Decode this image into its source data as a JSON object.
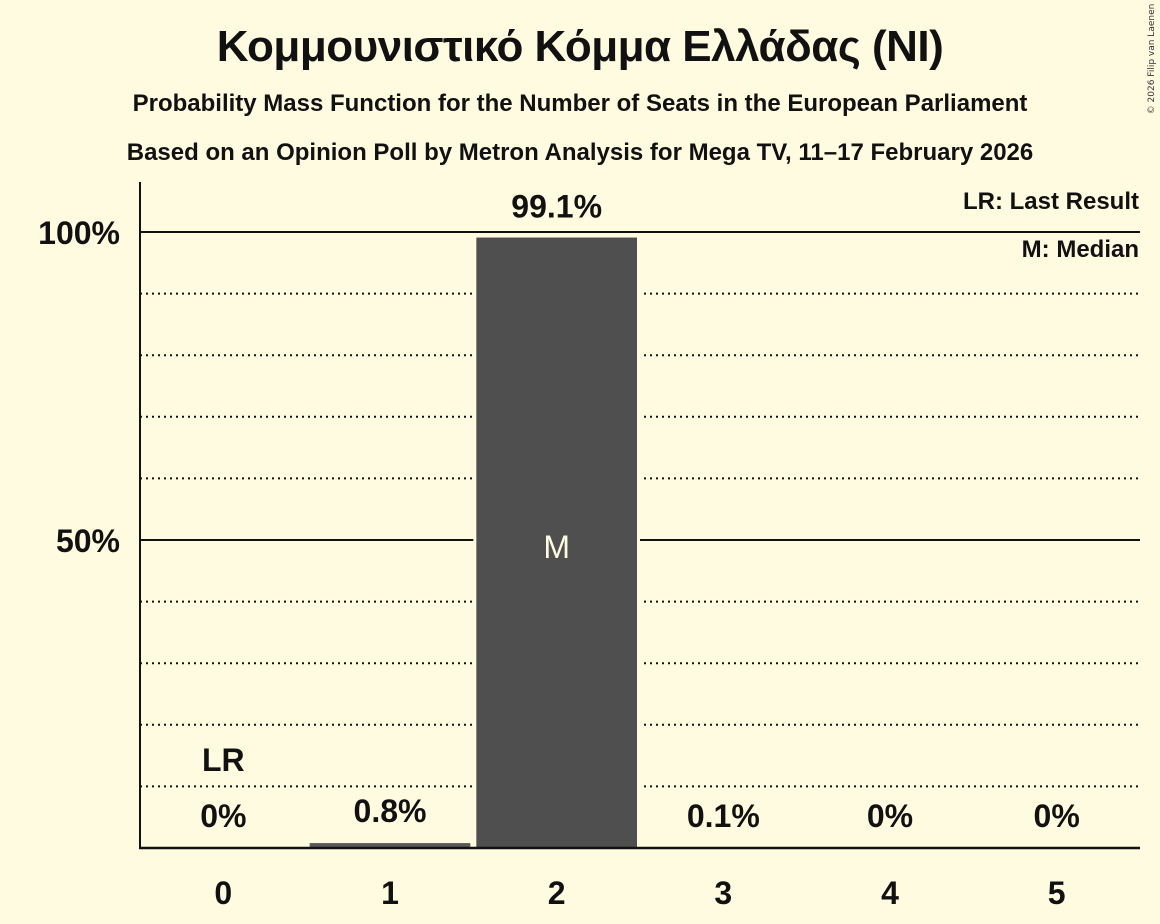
{
  "header": {
    "title": "Κομμουνιστικό Κόμμα Ελλάδας (NI)",
    "subtitle": "Probability Mass Function for the Number of Seats in the European Parliament",
    "source": "Based on an Opinion Poll by Metron Analysis for Mega TV, 11–17 February 2026",
    "copyright": "© 2026 Filip van Laenen"
  },
  "legend": {
    "last_result": "LR: Last Result",
    "median": "M: Median"
  },
  "colors": {
    "background": "#fffbe0",
    "bar": "#4f4f4f",
    "bar_small": "#5a5a5a",
    "text": "#111111",
    "median_text": "#fffbe0"
  },
  "chart_data": {
    "type": "bar",
    "title": "Κομμουνιστικό Κόμμα Ελλάδας (NI)",
    "subtitle": "Probability Mass Function for the Number of Seats in the European Parliament",
    "caption": "Based on an Opinion Poll by Metron Analysis for Mega TV, 11–17 February 2026",
    "xlabel": "",
    "ylabel": "",
    "categories": [
      "0",
      "1",
      "2",
      "3",
      "4",
      "5"
    ],
    "values": [
      0,
      0.8,
      99.1,
      0.1,
      0,
      0
    ],
    "value_labels": [
      "0%",
      "0.8%",
      "99.1%",
      "0.1%",
      "0%",
      "0%"
    ],
    "ylim": [
      0,
      100
    ],
    "yticks": [
      "50%",
      "100%"
    ],
    "grid": {
      "solid": [
        50,
        100
      ],
      "dotted": [
        10,
        20,
        30,
        40,
        60,
        70,
        80,
        90
      ]
    },
    "annotations": [
      {
        "category": "0",
        "text": "LR",
        "meaning": "Last Result"
      },
      {
        "category": "2",
        "text": "M",
        "meaning": "Median"
      }
    ],
    "legend_position": "top-right"
  }
}
